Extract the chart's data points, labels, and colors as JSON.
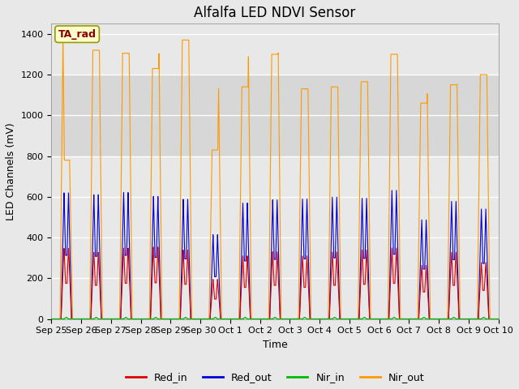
{
  "title": "Alfalfa LED NDVI Sensor",
  "ylabel": "LED Channels (mV)",
  "xlabel": "Time",
  "annotation_label": "TA_rad",
  "x_tick_labels": [
    "Sep 25",
    "Sep 26",
    "Sep 27",
    "Sep 28",
    "Sep 29",
    "Sep 30",
    "Oct 1",
    "Oct 2",
    "Oct 3",
    "Oct 4",
    "Oct 5",
    "Oct 6",
    "Oct 7",
    "Oct 8",
    "Oct 9",
    "Oct 10"
  ],
  "ylim": [
    0,
    1450
  ],
  "colors": {
    "Red_in": "#dd0000",
    "Red_out": "#0000dd",
    "Nir_in": "#00bb00",
    "Nir_out": "#ff9900"
  },
  "background_color": "#e8e8e8",
  "gray_bands": [
    [
      800,
      1200
    ]
  ],
  "pulse_peaks": {
    "Red_in": [
      350,
      330,
      350,
      355,
      340,
      195,
      310,
      330,
      310,
      330,
      340,
      350,
      265,
      330,
      280
    ],
    "Red_out": [
      625,
      615,
      625,
      605,
      590,
      415,
      570,
      585,
      590,
      600,
      595,
      635,
      490,
      582,
      545
    ],
    "Nir_in": [
      8,
      8,
      8,
      8,
      8,
      8,
      8,
      8,
      8,
      8,
      8,
      8,
      8,
      8,
      8
    ],
    "Nir_out": [
      1390,
      1320,
      1310,
      1230,
      1370,
      830,
      1140,
      1300,
      1130,
      1140,
      1170,
      1300,
      1060,
      1150,
      1200
    ]
  },
  "nir_out_second_peaks": [
    780,
    1320,
    1305,
    1310,
    1370,
    1140,
    1300,
    1320,
    0,
    0,
    1165,
    0,
    1110,
    1155,
    0
  ],
  "title_fontsize": 12,
  "legend_fontsize": 9,
  "tick_fontsize": 8,
  "figsize": [
    6.4,
    4.8
  ],
  "dpi": 100
}
